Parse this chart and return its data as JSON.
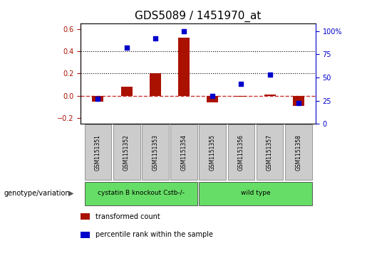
{
  "title": "GDS5089 / 1451970_at",
  "samples": [
    "GSM1151351",
    "GSM1151352",
    "GSM1151353",
    "GSM1151354",
    "GSM1151355",
    "GSM1151356",
    "GSM1151357",
    "GSM1151358"
  ],
  "transformed_count": [
    -0.05,
    0.08,
    0.2,
    0.52,
    -0.06,
    -0.01,
    0.01,
    -0.09
  ],
  "percentile_rank": [
    27,
    82,
    92,
    100,
    30,
    43,
    53,
    22
  ],
  "ylim_left": [
    -0.25,
    0.65
  ],
  "ylim_right": [
    0,
    108.33
  ],
  "yticks_left": [
    -0.2,
    0.0,
    0.2,
    0.4,
    0.6
  ],
  "yticks_right": [
    0,
    25,
    50,
    75,
    100
  ],
  "bar_color": "#aa1100",
  "dot_color": "#0000cc",
  "zero_line_color": "#cc3333",
  "dotted_line_color": "#000000",
  "groups": [
    {
      "label": "cystatin B knockout Cstb-/-",
      "start": 0,
      "end": 3,
      "color": "#66dd66"
    },
    {
      "label": "wild type",
      "start": 4,
      "end": 7,
      "color": "#66dd66"
    }
  ],
  "group_row_label": "genotype/variation",
  "legend_items": [
    {
      "label": "transformed count",
      "color": "#aa1100"
    },
    {
      "label": "percentile rank within the sample",
      "color": "#0000cc"
    }
  ],
  "sample_box_color": "#cccccc",
  "background_color": "#ffffff",
  "plot_bg_color": "#ffffff",
  "title_fontsize": 11,
  "tick_fontsize": 7,
  "label_fontsize": 7.5
}
